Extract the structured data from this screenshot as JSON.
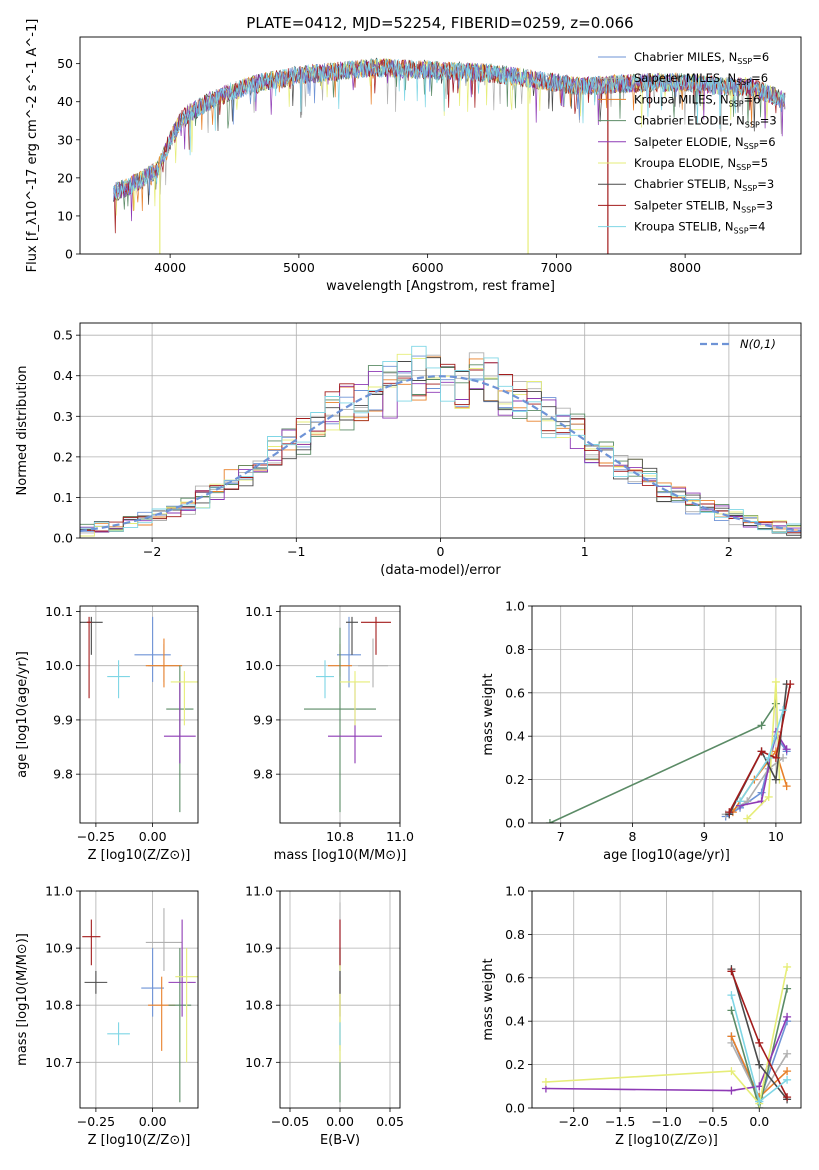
{
  "figure_title": "PLATE=0412, MJD=52254, FIBERID=0259, z=0.066",
  "colors": [
    "#6e93d6",
    "#b0b0b0",
    "#e8802a",
    "#5b8b66",
    "#8e3ab5",
    "#e6ed78",
    "#4a4a4a",
    "#a31c1c",
    "#7fd6e5"
  ],
  "models": [
    "Chabrier MILES",
    "Salpeter MILES",
    "Kroupa MILES",
    "Chabrier ELODIE",
    "Salpeter ELODIE",
    "Kroupa ELODIE",
    "Chabrier STELIB",
    "Salpeter STELIB",
    "Kroupa STELIB"
  ],
  "chart_data": [
    {
      "id": "spectrum",
      "type": "line",
      "xlabel": "wavelength [Angstrom, rest frame]",
      "ylabel": "Flux [f_λ10^-17 erg cm^-2 s^-1 A^-1]",
      "xlim": [
        3300,
        8900
      ],
      "ylim": [
        0,
        57
      ],
      "xticks": [
        "4000",
        "5000",
        "6000",
        "7000",
        "8000"
      ],
      "yticks": [
        "0",
        "10",
        "20",
        "30",
        "40",
        "50"
      ],
      "grid": false,
      "legend_position": "top-right",
      "legend": [
        {
          "label": "Chabrier MILES, N",
          "sub": "SSP",
          "suffix": "=6"
        },
        {
          "label": "Salpeter MILES, N",
          "sub": "SSP",
          "suffix": "=6"
        },
        {
          "label": "Kroupa MILES, N",
          "sub": "SSP",
          "suffix": "=6"
        },
        {
          "label": "Chabrier ELODIE, N",
          "sub": "SSP",
          "suffix": "=3"
        },
        {
          "label": "Salpeter ELODIE, N",
          "sub": "SSP",
          "suffix": "=6"
        },
        {
          "label": "Kroupa ELODIE, N",
          "sub": "SSP",
          "suffix": "=5"
        },
        {
          "label": "Chabrier STELIB, N",
          "sub": "SSP",
          "suffix": "=3"
        },
        {
          "label": "Salpeter STELIB, N",
          "sub": "SSP",
          "suffix": "=3"
        },
        {
          "label": "Kroupa STELIB, N",
          "sub": "SSP",
          "suffix": "=4"
        }
      ],
      "continuum": {
        "x": [
          3550,
          3700,
          3900,
          4000,
          4100,
          4300,
          4500,
          4700,
          5000,
          5300,
          5600,
          5900,
          6200,
          6500,
          6800,
          7000,
          7200,
          7400,
          7700,
          8000,
          8300,
          8500,
          8800
        ],
        "y": [
          16,
          18,
          22,
          30,
          36,
          40,
          43,
          45,
          47,
          48,
          49,
          48.5,
          48,
          47.5,
          46,
          45,
          44,
          44.5,
          45,
          45,
          44,
          44,
          40
        ]
      }
    },
    {
      "id": "residuals",
      "type": "line",
      "xlabel": "(data-model)/error",
      "ylabel": "Normed distribution",
      "xlim": [
        -2.5,
        2.5
      ],
      "ylim": [
        0,
        0.53
      ],
      "xticks": [
        "−2",
        "−1",
        "0",
        "1",
        "2"
      ],
      "yticks": [
        "0.0",
        "0.1",
        "0.2",
        "0.3",
        "0.4",
        "0.5"
      ],
      "grid": true,
      "legend_position": "top-right",
      "legend_label": "N(0,1)",
      "bin_width": 0.1
    },
    {
      "id": "age-vs-Z",
      "type": "scatter",
      "xlabel": "Z [log10(Z/Z⊙)]",
      "ylabel": "age [log10(age/yr)]",
      "xlim": [
        -0.32,
        0.2
      ],
      "ylim": [
        9.71,
        10.11
      ],
      "xticks": [
        "−0.25",
        "0.00"
      ],
      "yticks": [
        "9.8",
        "9.9",
        "10.0",
        "10.1"
      ],
      "points": [
        {
          "x": 0.0,
          "y": 10.02,
          "ex": 0.08,
          "ey": [
            0.05,
            0.07
          ]
        },
        {
          "x": 0.05,
          "y": 10.0,
          "ex": 0.07,
          "ey": [
            0.03,
            0.04
          ]
        },
        {
          "x": 0.05,
          "y": 10.0,
          "ex": 0.08,
          "ey": [
            0.04,
            0.05
          ]
        },
        {
          "x": 0.12,
          "y": 9.92,
          "ex": 0.06,
          "ey": [
            0.19,
            0.08
          ]
        },
        {
          "x": 0.12,
          "y": 9.87,
          "ex": 0.07,
          "ey": [
            0.05,
            0.1
          ]
        },
        {
          "x": 0.14,
          "y": 9.97,
          "ex": 0.06,
          "ey": [
            0.08,
            0.02
          ]
        },
        {
          "x": -0.27,
          "y": 10.08,
          "ex": 0.05,
          "ey": [
            0.06,
            0.01
          ]
        },
        {
          "x": -0.28,
          "y": 10.08,
          "ex": 0.01,
          "ey": [
            0.14,
            0.01
          ]
        },
        {
          "x": -0.15,
          "y": 9.98,
          "ex": 0.05,
          "ey": [
            0.04,
            0.03
          ]
        }
      ]
    },
    {
      "id": "age-vs-mass",
      "type": "scatter",
      "xlabel": "mass [log10(M/M⊙)]",
      "ylabel": "",
      "xlim": [
        10.6,
        11.0
      ],
      "ylim": [
        9.71,
        10.11
      ],
      "xticks": [
        "10.8",
        "11.0"
      ],
      "yticks": [
        "9.8",
        "9.9",
        "10.0",
        "10.1"
      ],
      "points": [
        {
          "x": 10.83,
          "y": 10.02,
          "ex": 0.04,
          "ey": [
            0.06,
            0.07
          ]
        },
        {
          "x": 10.91,
          "y": 10.0,
          "ex": 0.05,
          "ey": [
            0.04,
            0.05
          ]
        },
        {
          "x": 10.8,
          "y": 10.0,
          "ex": 0.04,
          "ey": [
            0.02,
            0.04
          ]
        },
        {
          "x": 10.8,
          "y": 9.92,
          "ex": 0.12,
          "ey": [
            0.19,
            0.15
          ]
        },
        {
          "x": 10.85,
          "y": 9.87,
          "ex": 0.09,
          "ey": [
            0.05,
            0.1
          ]
        },
        {
          "x": 10.85,
          "y": 9.97,
          "ex": 0.05,
          "ey": [
            0.08,
            0.02
          ]
        },
        {
          "x": 10.84,
          "y": 10.08,
          "ex": 0.02,
          "ey": [
            0.06,
            0.01
          ]
        },
        {
          "x": 10.92,
          "y": 10.08,
          "ex": 0.05,
          "ey": [
            0.06,
            0.01
          ]
        },
        {
          "x": 10.75,
          "y": 9.98,
          "ex": 0.03,
          "ey": [
            0.04,
            0.03
          ]
        }
      ]
    },
    {
      "id": "weight-vs-age",
      "type": "line",
      "xlabel": "age [log10(age/yr)]",
      "ylabel": "mass weight",
      "xlim": [
        6.6,
        10.35
      ],
      "ylim": [
        0,
        1.0
      ],
      "xticks": [
        "7",
        "8",
        "9",
        "10"
      ],
      "yticks": [
        "0.0",
        "0.2",
        "0.4",
        "0.6",
        "0.8",
        "1.0"
      ],
      "grid": true,
      "series": [
        {
          "x": [
            9.3,
            9.5,
            9.8,
            10.0,
            10.15
          ],
          "y": [
            0.03,
            0.07,
            0.14,
            0.4,
            0.33
          ]
        },
        {
          "x": [
            9.3,
            9.6,
            9.9,
            10.1
          ],
          "y": [
            0.04,
            0.1,
            0.25,
            0.3
          ]
        },
        {
          "x": [
            9.4,
            9.7,
            10.0,
            10.15
          ],
          "y": [
            0.05,
            0.2,
            0.33,
            0.17
          ]
        },
        {
          "x": [
            6.85,
            9.8,
            10.0
          ],
          "y": [
            0.0,
            0.45,
            0.55
          ]
        },
        {
          "x": [
            9.5,
            9.8,
            10.0,
            10.15
          ],
          "y": [
            0.08,
            0.1,
            0.42,
            0.34
          ]
        },
        {
          "x": [
            9.6,
            9.9,
            10.0,
            10.05
          ],
          "y": [
            0.02,
            0.12,
            0.65,
            0.2
          ]
        },
        {
          "x": [
            9.35,
            9.8,
            10.0,
            10.15
          ],
          "y": [
            0.04,
            0.33,
            0.2,
            0.64
          ]
        },
        {
          "x": [
            9.35,
            9.8,
            10.0,
            10.2
          ],
          "y": [
            0.05,
            0.33,
            0.3,
            0.64
          ]
        },
        {
          "x": [
            9.5,
            9.9,
            10.1
          ],
          "y": [
            0.1,
            0.3,
            0.52
          ]
        }
      ]
    },
    {
      "id": "mass-vs-Z",
      "type": "scatter",
      "xlabel": "Z [log10(Z/Z⊙)]",
      "ylabel": "mass [log10(M/M⊙)]",
      "xlim": [
        -0.32,
        0.2
      ],
      "ylim": [
        10.62,
        11.0
      ],
      "xticks": [
        "−0.25",
        "0.00"
      ],
      "yticks": [
        "10.7",
        "10.8",
        "10.9",
        "11.0"
      ],
      "points": [
        {
          "x": 0.0,
          "y": 10.83,
          "ex": 0.05,
          "ey": [
            0.05,
            0.07
          ]
        },
        {
          "x": 0.05,
          "y": 10.91,
          "ex": 0.08,
          "ey": [
            0.05,
            0.06
          ]
        },
        {
          "x": 0.04,
          "y": 10.8,
          "ex": 0.06,
          "ey": [
            0.08,
            0.05
          ]
        },
        {
          "x": 0.12,
          "y": 10.8,
          "ex": 0.05,
          "ey": [
            0.17,
            0.1
          ]
        },
        {
          "x": 0.13,
          "y": 10.84,
          "ex": 0.06,
          "ey": [
            0.06,
            0.11
          ]
        },
        {
          "x": 0.15,
          "y": 10.85,
          "ex": 0.05,
          "ey": [
            0.15,
            0.05
          ]
        },
        {
          "x": -0.25,
          "y": 10.84,
          "ex": 0.05,
          "ey": [
            0.02,
            0.02
          ]
        },
        {
          "x": -0.27,
          "y": 10.92,
          "ex": 0.04,
          "ey": [
            0.05,
            0.03
          ]
        },
        {
          "x": -0.15,
          "y": 10.75,
          "ex": 0.05,
          "ey": [
            0.02,
            0.02
          ]
        }
      ]
    },
    {
      "id": "mass-vs-EBV",
      "type": "scatter",
      "xlabel": "E(B-V)",
      "ylabel": "",
      "xlim": [
        -0.06,
        0.06
      ],
      "ylim": [
        10.62,
        11.0
      ],
      "xticks": [
        "−0.05",
        "0.00",
        "0.05"
      ],
      "yticks": [
        "10.7",
        "10.8",
        "10.9",
        "11.0"
      ],
      "points": [
        {
          "x": 0.0,
          "y": 10.83,
          "ex": 0.0,
          "ey": [
            0.05,
            0.07
          ]
        },
        {
          "x": 0.0,
          "y": 10.91,
          "ex": 0.0,
          "ey": [
            0.05,
            0.07
          ]
        },
        {
          "x": 0.0,
          "y": 10.8,
          "ex": 0.0,
          "ey": [
            0.08,
            0.05
          ]
        },
        {
          "x": 0.0,
          "y": 10.8,
          "ex": 0.0,
          "ey": [
            0.17,
            0.1
          ]
        },
        {
          "x": 0.0,
          "y": 10.84,
          "ex": 0.0,
          "ey": [
            0.06,
            0.11
          ]
        },
        {
          "x": 0.0,
          "y": 10.85,
          "ex": 0.0,
          "ey": [
            0.15,
            0.05
          ]
        },
        {
          "x": 0.0,
          "y": 10.84,
          "ex": 0.0,
          "ey": [
            0.02,
            0.02
          ]
        },
        {
          "x": 0.0,
          "y": 10.92,
          "ex": 0.0,
          "ey": [
            0.05,
            0.03
          ]
        },
        {
          "x": 0.0,
          "y": 10.75,
          "ex": 0.0,
          "ey": [
            0.02,
            0.02
          ]
        }
      ]
    },
    {
      "id": "weight-vs-Z",
      "type": "line",
      "xlabel": "Z [log10(Z/Z⊙)]",
      "ylabel": "mass weight",
      "xlim": [
        -2.45,
        0.45
      ],
      "ylim": [
        0,
        1.0
      ],
      "xticks": [
        "−2.0",
        "−1.5",
        "−1.0",
        "−0.5",
        "0.0"
      ],
      "yticks": [
        "0.0",
        "0.2",
        "0.4",
        "0.6",
        "0.8",
        "1.0"
      ],
      "grid": true,
      "series": [
        {
          "x": [
            -0.3,
            0.0,
            0.3
          ],
          "y": [
            0.33,
            0.03,
            0.4
          ]
        },
        {
          "x": [
            -0.3,
            0.0,
            0.3
          ],
          "y": [
            0.3,
            0.04,
            0.25
          ]
        },
        {
          "x": [
            -0.3,
            0.0,
            0.3
          ],
          "y": [
            0.33,
            0.05,
            0.17
          ]
        },
        {
          "x": [
            -0.3,
            0.0,
            0.3
          ],
          "y": [
            0.45,
            0.0,
            0.55
          ]
        },
        {
          "x": [
            -2.3,
            -0.3,
            0.0,
            0.3
          ],
          "y": [
            0.09,
            0.08,
            0.1,
            0.42
          ]
        },
        {
          "x": [
            -2.3,
            -0.3,
            0.0,
            0.3
          ],
          "y": [
            0.12,
            0.17,
            0.02,
            0.65
          ]
        },
        {
          "x": [
            -0.3,
            0.0,
            0.3
          ],
          "y": [
            0.64,
            0.2,
            0.04
          ]
        },
        {
          "x": [
            -0.3,
            0.0,
            0.3
          ],
          "y": [
            0.63,
            0.3,
            0.05
          ]
        },
        {
          "x": [
            -0.3,
            0.0,
            0.3
          ],
          "y": [
            0.52,
            0.03,
            0.13
          ]
        }
      ]
    }
  ]
}
